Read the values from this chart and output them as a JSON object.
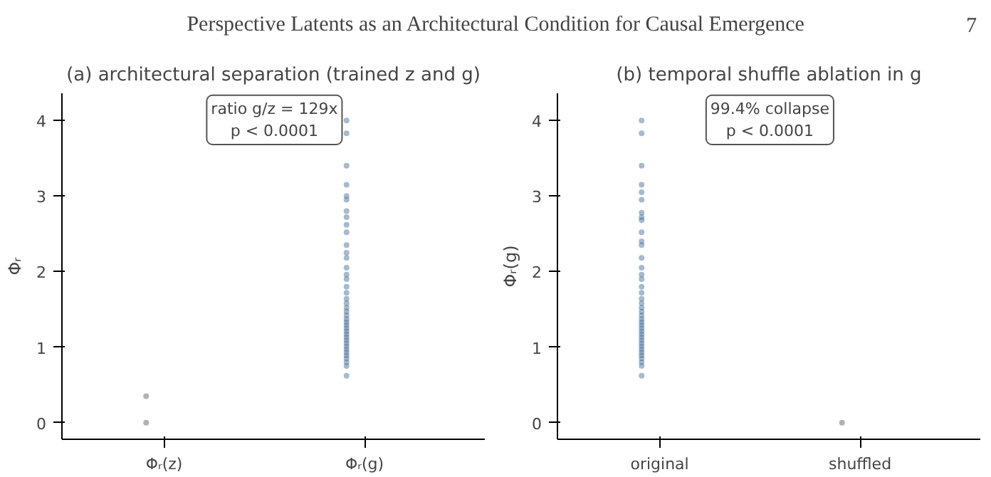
{
  "chart_data": [
    {
      "type": "other",
      "title": "Perspective Latents as an Architectural Condition for Causal Emergence",
      "annotations": [
        "7"
      ]
    },
    {
      "type": "scatter",
      "title": "(a) architectural separation (trained z and g)",
      "ylabel": "Φᵣ",
      "annotations": [
        "ratio g/z = 129x\np < 0.0001"
      ],
      "categories": [
        "Φᵣ(z)",
        "Φᵣ(g)"
      ],
      "ylim": [
        -0.22,
        4.36
      ],
      "yticks": [
        0,
        1,
        2,
        3,
        4
      ],
      "marker": "circle",
      "series": [
        {
          "type": "scatter",
          "color": "#555555",
          "x": [
            "Φᵣ(z)",
            "Φᵣ(z)"
          ],
          "values": [
            0.0,
            0.35
          ]
        },
        {
          "type": "scatter",
          "color": "#3c6690",
          "x": [
            "Φᵣ(g)",
            "Φᵣ(g)",
            "Φᵣ(g)",
            "Φᵣ(g)",
            "Φᵣ(g)",
            "Φᵣ(g)",
            "Φᵣ(g)",
            "Φᵣ(g)",
            "Φᵣ(g)",
            "Φᵣ(g)",
            "Φᵣ(g)",
            "Φᵣ(g)",
            "Φᵣ(g)",
            "Φᵣ(g)",
            "Φᵣ(g)",
            "Φᵣ(g)",
            "Φᵣ(g)",
            "Φᵣ(g)",
            "Φᵣ(g)",
            "Φᵣ(g)",
            "Φᵣ(g)",
            "Φᵣ(g)",
            "Φᵣ(g)",
            "Φᵣ(g)",
            "Φᵣ(g)",
            "Φᵣ(g)",
            "Φᵣ(g)",
            "Φᵣ(g)",
            "Φᵣ(g)",
            "Φᵣ(g)",
            "Φᵣ(g)",
            "Φᵣ(g)",
            "Φᵣ(g)",
            "Φᵣ(g)",
            "Φᵣ(g)",
            "Φᵣ(g)",
            "Φᵣ(g)",
            "Φᵣ(g)",
            "Φᵣ(g)",
            "Φᵣ(g)"
          ],
          "values": [
            4.0,
            3.83,
            3.4,
            3.15,
            2.95,
            2.72,
            2.52,
            2.35,
            2.18,
            2.05,
            1.9,
            1.8,
            1.72,
            1.64,
            1.58,
            1.52,
            1.47,
            1.42,
            1.37,
            1.33,
            1.29,
            1.25,
            1.21,
            1.17,
            1.13,
            1.09,
            1.05,
            1.01,
            0.97,
            0.93,
            0.89,
            0.85,
            0.8,
            0.75,
            0.62,
            3.0,
            2.8,
            2.62,
            2.25,
            1.96
          ]
        }
      ]
    },
    {
      "type": "scatter",
      "title": "(b) temporal shuffle ablation in g",
      "ylabel": "Φᵣ(g)",
      "annotations": [
        "99.4% collapse\np < 0.0001"
      ],
      "categories": [
        "original",
        "shuffled"
      ],
      "ylim": [
        -0.22,
        4.36
      ],
      "yticks": [
        0,
        1,
        2,
        3,
        4
      ],
      "marker": "circle",
      "series": [
        {
          "type": "scatter",
          "color": "#3c6690",
          "x": [
            "original",
            "original",
            "original",
            "original",
            "original",
            "original",
            "original",
            "original",
            "original",
            "original",
            "original",
            "original",
            "original",
            "original",
            "original",
            "original",
            "original",
            "original",
            "original",
            "original",
            "original",
            "original",
            "original",
            "original",
            "original",
            "original",
            "original",
            "original",
            "original",
            "original",
            "original",
            "original",
            "original",
            "original",
            "original",
            "original",
            "original",
            "original",
            "original",
            "original"
          ],
          "values": [
            4.0,
            3.83,
            3.4,
            3.15,
            2.95,
            2.72,
            2.52,
            2.35,
            2.18,
            2.05,
            1.9,
            1.8,
            1.72,
            1.64,
            1.58,
            1.52,
            1.47,
            1.42,
            1.37,
            1.33,
            1.29,
            1.25,
            1.21,
            1.17,
            1.13,
            1.09,
            1.05,
            1.01,
            0.97,
            0.93,
            0.89,
            0.85,
            0.8,
            0.75,
            0.62,
            3.05,
            2.78,
            2.68,
            2.4,
            1.96
          ]
        },
        {
          "type": "scatter",
          "color": "#555555",
          "x": [
            "shuffled"
          ],
          "values": [
            0.0
          ]
        }
      ]
    }
  ]
}
